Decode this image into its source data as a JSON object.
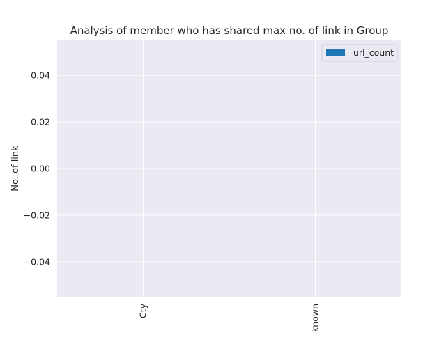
{
  "chart_data": {
    "type": "bar",
    "title": "Analysis of member who has shared max no. of link in Group",
    "xlabel": "",
    "ylabel": "No. of link",
    "categories": [
      "Cty",
      "known"
    ],
    "series": [
      {
        "name": "url_count",
        "values": [
          0,
          0
        ]
      }
    ],
    "ylim": [
      -0.055,
      0.055
    ],
    "yticks": [
      "0.04",
      "0.02",
      "0.00",
      "−0.02",
      "−0.04"
    ],
    "ytick_values": [
      0.04,
      0.02,
      0.0,
      -0.02,
      -0.04
    ],
    "grid": true,
    "legend_position": "top-right",
    "colors": {
      "series": "#1f77b4",
      "plot_bg": "#eaeaf2",
      "grid": "#ffffff"
    }
  }
}
